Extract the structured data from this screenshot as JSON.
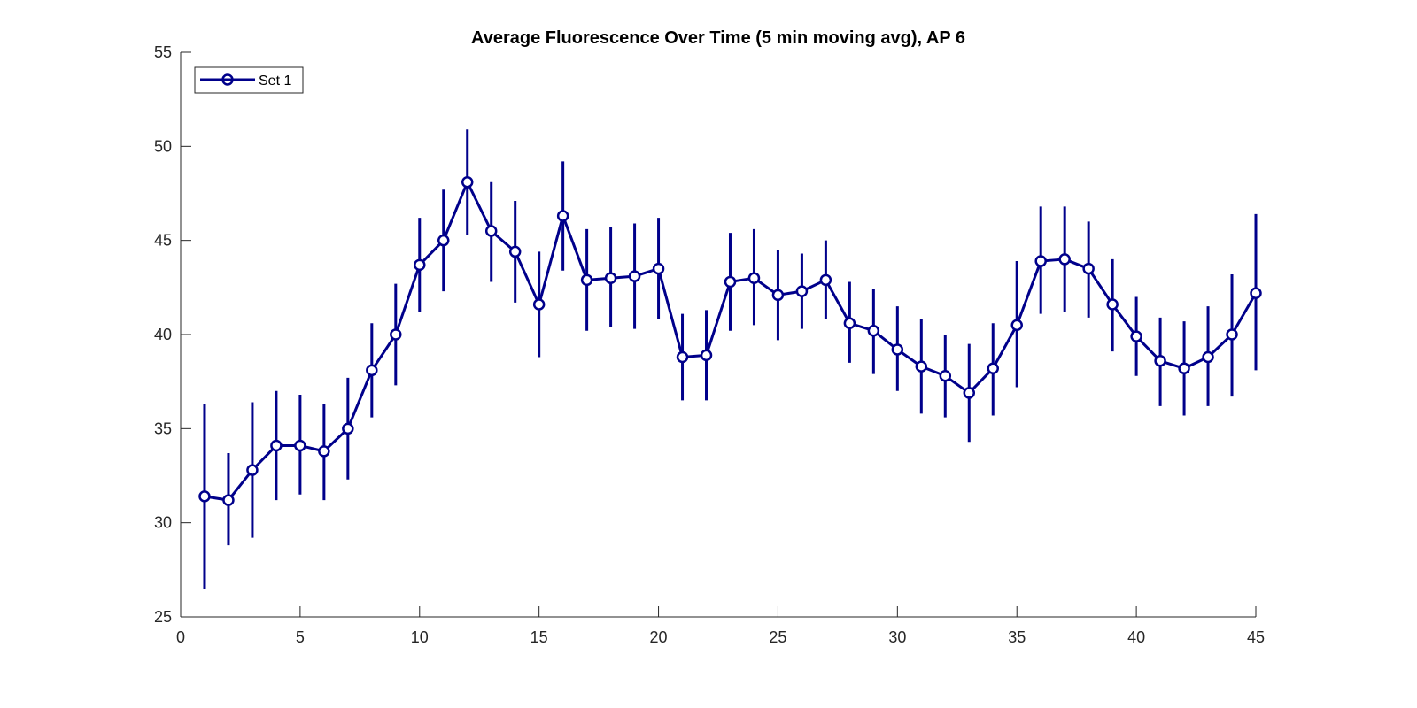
{
  "chart_data": {
    "type": "line",
    "title": "Average Fluorescence Over Time (5 min moving avg), AP 6",
    "xlabel": "",
    "ylabel": "",
    "xlim": [
      0,
      45
    ],
    "ylim": [
      25,
      55
    ],
    "xticks": [
      0,
      5,
      10,
      15,
      20,
      25,
      30,
      35,
      40,
      45
    ],
    "yticks": [
      25,
      30,
      35,
      40,
      45,
      50,
      55
    ],
    "grid": false,
    "legend_position": "top-left",
    "color": "#00008b",
    "series": [
      {
        "name": "Set 1",
        "marker": "circle",
        "x": [
          1,
          2,
          3,
          4,
          5,
          6,
          7,
          8,
          9,
          10,
          11,
          12,
          13,
          14,
          15,
          16,
          17,
          18,
          19,
          20,
          21,
          22,
          23,
          24,
          25,
          26,
          27,
          28,
          29,
          30,
          31,
          32,
          33,
          34,
          35,
          36,
          37,
          38,
          39,
          40,
          41,
          42,
          43,
          44,
          45
        ],
        "values": [
          31.4,
          31.2,
          32.8,
          34.1,
          34.1,
          33.8,
          35.0,
          38.1,
          40.0,
          43.7,
          45.0,
          48.1,
          45.5,
          44.4,
          41.6,
          46.3,
          42.9,
          43.0,
          43.1,
          43.5,
          38.8,
          38.9,
          42.8,
          43.0,
          42.1,
          42.3,
          42.9,
          40.6,
          40.2,
          39.2,
          38.3,
          37.8,
          36.9,
          38.2,
          40.5,
          43.9,
          44.0,
          43.5,
          41.6,
          39.9,
          38.6,
          38.2,
          38.8,
          40.0,
          42.2
        ],
        "lower": [
          26.5,
          28.8,
          29.2,
          31.2,
          31.5,
          31.2,
          32.3,
          35.6,
          37.3,
          41.2,
          42.3,
          45.3,
          42.8,
          41.7,
          38.8,
          43.4,
          40.2,
          40.4,
          40.3,
          40.8,
          36.5,
          36.5,
          40.2,
          40.5,
          39.7,
          40.3,
          40.8,
          38.5,
          37.9,
          37.0,
          35.8,
          35.6,
          34.3,
          35.7,
          37.2,
          41.1,
          41.2,
          40.9,
          39.1,
          37.8,
          36.2,
          35.7,
          36.2,
          36.7,
          38.1
        ],
        "upper": [
          36.3,
          33.7,
          36.4,
          37.0,
          36.8,
          36.3,
          37.7,
          40.6,
          42.7,
          46.2,
          47.7,
          50.9,
          48.1,
          47.1,
          44.4,
          49.2,
          45.6,
          45.7,
          45.9,
          46.2,
          41.1,
          41.3,
          45.4,
          45.6,
          44.5,
          44.3,
          45.0,
          42.8,
          42.4,
          41.5,
          40.8,
          40.0,
          39.5,
          40.6,
          43.9,
          46.8,
          46.8,
          46.0,
          44.0,
          42.0,
          40.9,
          40.7,
          41.5,
          43.2,
          46.4
        ]
      }
    ]
  }
}
